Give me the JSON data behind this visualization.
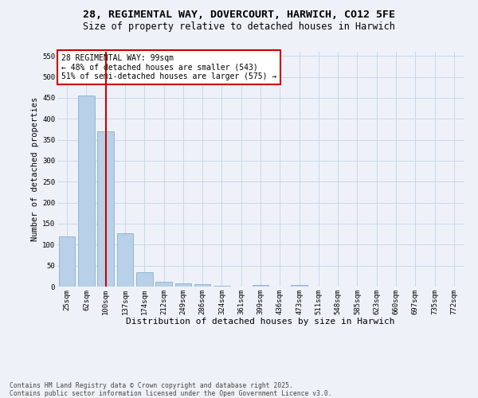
{
  "title": "28, REGIMENTAL WAY, DOVERCOURT, HARWICH, CO12 5FE",
  "subtitle": "Size of property relative to detached houses in Harwich",
  "xlabel": "Distribution of detached houses by size in Harwich",
  "ylabel": "Number of detached properties",
  "categories": [
    "25sqm",
    "62sqm",
    "100sqm",
    "137sqm",
    "174sqm",
    "212sqm",
    "249sqm",
    "286sqm",
    "324sqm",
    "361sqm",
    "399sqm",
    "436sqm",
    "473sqm",
    "511sqm",
    "548sqm",
    "585sqm",
    "623sqm",
    "660sqm",
    "697sqm",
    "735sqm",
    "772sqm"
  ],
  "bar_vals": [
    120,
    455,
    370,
    128,
    35,
    12,
    8,
    6,
    2,
    0,
    4,
    0,
    4,
    0,
    0,
    0,
    0,
    0,
    0,
    0,
    0
  ],
  "bar_color": "#b8d0e8",
  "bar_edge_color": "#8ab0d0",
  "grid_color": "#c8d8e8",
  "background_color": "#eef2f8",
  "vline_x_index": 2,
  "vline_color": "#cc0000",
  "annotation_text": "28 REGIMENTAL WAY: 99sqm\n← 48% of detached houses are smaller (543)\n51% of semi-detached houses are larger (575) →",
  "annotation_box_color": "white",
  "annotation_box_edge_color": "#cc0000",
  "footer": "Contains HM Land Registry data © Crown copyright and database right 2025.\nContains public sector information licensed under the Open Government Licence v3.0.",
  "ylim": [
    0,
    560
  ],
  "yticks": [
    0,
    50,
    100,
    150,
    200,
    250,
    300,
    350,
    400,
    450,
    500,
    550
  ],
  "title_fontsize": 9.5,
  "subtitle_fontsize": 8.5,
  "tick_fontsize": 6.5,
  "ylabel_fontsize": 7.5,
  "xlabel_fontsize": 8.0,
  "annotation_fontsize": 7.0,
  "footer_fontsize": 5.8
}
